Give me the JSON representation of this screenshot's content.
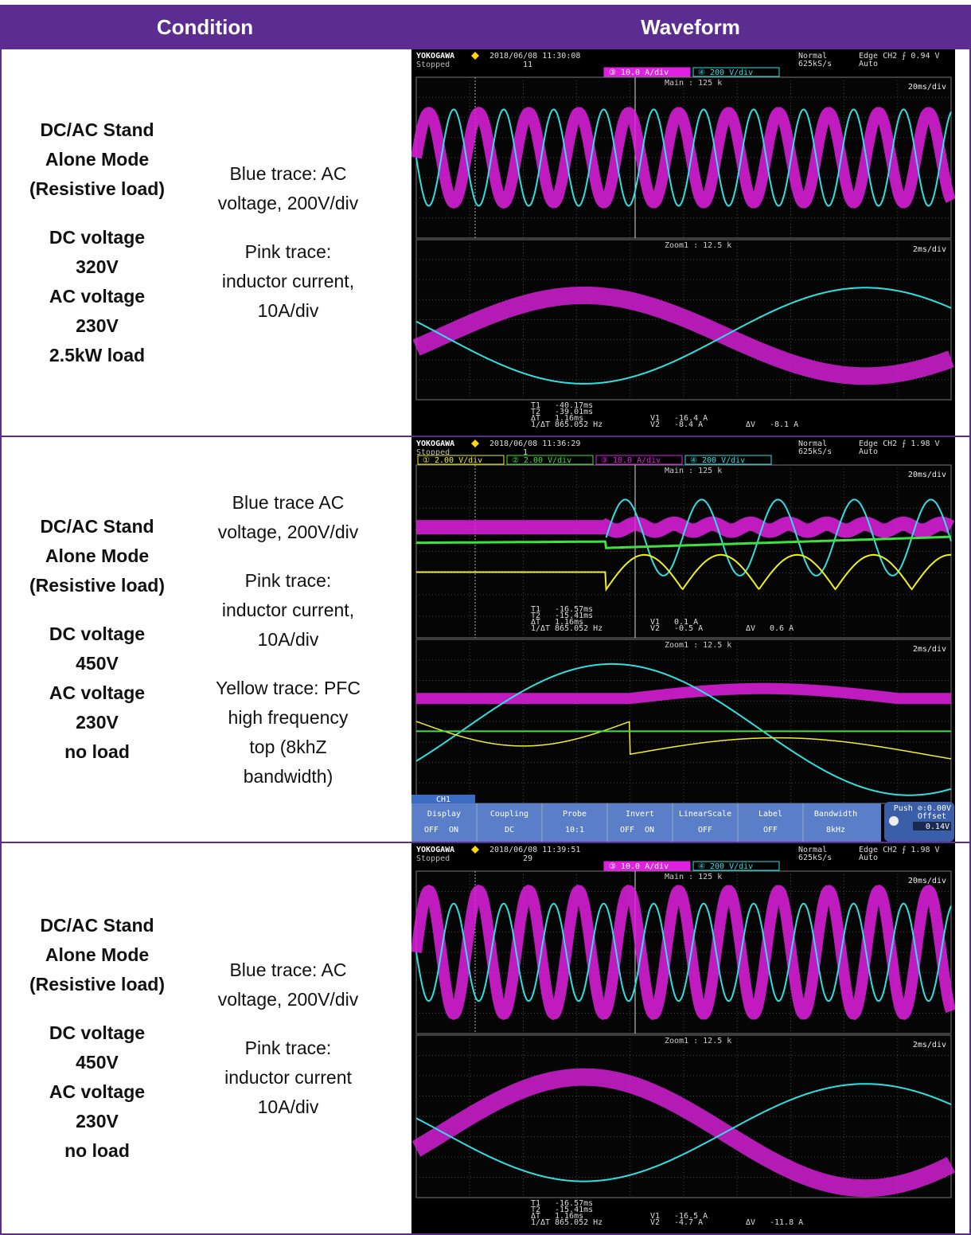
{
  "header": {
    "condition": "Condition",
    "waveform": "Waveform"
  },
  "rows": [
    {
      "condition": [
        [
          "DC/AC Stand",
          "Alone Mode",
          "(Resistive load)"
        ],
        [
          "DC voltage",
          "320V",
          "AC voltage",
          "230V",
          "2.5kW load"
        ]
      ],
      "description": [
        [
          "Blue trace: AC",
          "voltage, 200V/div"
        ],
        [
          "Pink trace:",
          "inductor current,",
          "10A/div"
        ]
      ],
      "scope": {
        "brand": "YOKOGAWA",
        "status": "Stopped",
        "datetime": "2018/06/08 11:30:08",
        "count": "11",
        "mode": "Normal",
        "rate": "625kS/s",
        "trigger": "Edge CH2 ⨍ 0.94 V",
        "trigger_mode": "Auto",
        "channels": [
          {
            "label": "③ 10.0 A/div",
            "color": "#e020e0"
          },
          {
            "label": "④ 200 V/div",
            "color": "#30e0e0"
          }
        ],
        "main": "Main : 125 k",
        "main_div": "20ms/div",
        "zoom": "Zoom1 : 12.5 k",
        "zoom_div": "2ms/div",
        "readout": [
          {
            "label": "T1",
            "value": "-40.17ms"
          },
          {
            "label": "T2",
            "value": "-39.01ms"
          },
          {
            "label": "ΔT",
            "value": "1.16ms"
          },
          {
            "label": "1/ΔT",
            "value": "865.052 Hz"
          },
          {
            "label": "V1",
            "value": "-16.4 A"
          },
          {
            "label": "V2",
            "value": "-8.4 A"
          },
          {
            "label": "ΔV",
            "value": "-8.1 A"
          }
        ]
      }
    },
    {
      "condition": [
        [
          "DC/AC Stand",
          "Alone Mode",
          "(Resistive load)"
        ],
        [
          "DC voltage",
          "450V",
          "AC voltage",
          "230V",
          "no load"
        ]
      ],
      "description": [
        [
          "Blue trace AC",
          "voltage, 200V/div"
        ],
        [
          "Pink trace:",
          "inductor current,",
          "10A/div"
        ],
        [
          "Yellow trace: PFC",
          "high frequency",
          "top (8khZ",
          "bandwidth)"
        ]
      ],
      "scope": {
        "brand": "YOKOGAWA",
        "status": "Stopped",
        "datetime": "2018/06/08 11:36:29",
        "count": "1",
        "mode": "Normal",
        "rate": "625kS/s",
        "trigger": "Edge CH2 ⨍ 1.98 V",
        "trigger_mode": "Auto",
        "channels": [
          {
            "label": "① 2.00 V/div",
            "color": "#f0f020"
          },
          {
            "label": "② 2.00 V/div",
            "color": "#40e040"
          },
          {
            "label": "③ 10.0 A/div",
            "color": "#e020e0"
          },
          {
            "label": "④ 200 V/div",
            "color": "#30e0e0"
          }
        ],
        "main": "Main : 125 k",
        "main_div": "20ms/div",
        "zoom": "Zoom1 : 12.5 k",
        "zoom_div": "2ms/div",
        "readout": [
          {
            "label": "T1",
            "value": "-16.57ms"
          },
          {
            "label": "T2",
            "value": "-15.41ms"
          },
          {
            "label": "ΔT",
            "value": "1.16ms"
          },
          {
            "label": "1/ΔT",
            "value": "865.052 Hz"
          },
          {
            "label": "V1",
            "value": "0.1 A"
          },
          {
            "label": "V2",
            "value": "-0.5 A"
          },
          {
            "label": "ΔV",
            "value": "0.6 A"
          }
        ],
        "menu": {
          "tab": "CH1",
          "items": [
            {
              "title": "Display",
              "values": [
                "OFF",
                "ON"
              ]
            },
            {
              "title": "Coupling",
              "values": [
                "DC"
              ]
            },
            {
              "title": "Probe",
              "values": [
                "10:1"
              ]
            },
            {
              "title": "Invert",
              "values": [
                "OFF",
                "ON"
              ]
            },
            {
              "title": "LinearScale",
              "values": [
                "OFF"
              ]
            },
            {
              "title": "Label",
              "values": [
                "OFF"
              ]
            },
            {
              "title": "Bandwidth",
              "values": [
                "8kHz"
              ]
            }
          ],
          "offset": {
            "push": "Push ⊘:0.00V",
            "title": "Offset",
            "value": "0.14V"
          }
        }
      }
    },
    {
      "condition": [
        [
          "DC/AC Stand",
          "Alone Mode",
          "(Resistive load)"
        ],
        [
          "DC voltage",
          "450V",
          "AC voltage",
          "230V",
          "no load"
        ]
      ],
      "description": [
        [
          "Blue trace: AC",
          "voltage, 200V/div"
        ],
        [
          "Pink trace:",
          "inductor current",
          "10A/div"
        ]
      ],
      "scope": {
        "brand": "YOKOGAWA",
        "status": "Stopped",
        "datetime": "2018/06/08 11:39:51",
        "count": "29",
        "mode": "Normal",
        "rate": "625kS/s",
        "trigger": "Edge CH2 ⨍ 1.98 V",
        "trigger_mode": "Auto",
        "channels": [
          {
            "label": "③ 10.0 A/div",
            "color": "#e020e0"
          },
          {
            "label": "④ 200 V/div",
            "color": "#30e0e0"
          }
        ],
        "main": "Main : 125 k",
        "main_div": "20ms/div",
        "zoom": "Zoom1 : 12.5 k",
        "zoom_div": "2ms/div",
        "readout": [
          {
            "label": "T1",
            "value": "-16.57ms"
          },
          {
            "label": "T2",
            "value": "-15.41ms"
          },
          {
            "label": "ΔT",
            "value": "1.16ms"
          },
          {
            "label": "1/ΔT",
            "value": "865.052 Hz"
          },
          {
            "label": "V1",
            "value": "-16.5 A"
          },
          {
            "label": "V2",
            "value": "-4.7 A"
          },
          {
            "label": "ΔV",
            "value": "-11.8 A"
          }
        ]
      }
    }
  ]
}
